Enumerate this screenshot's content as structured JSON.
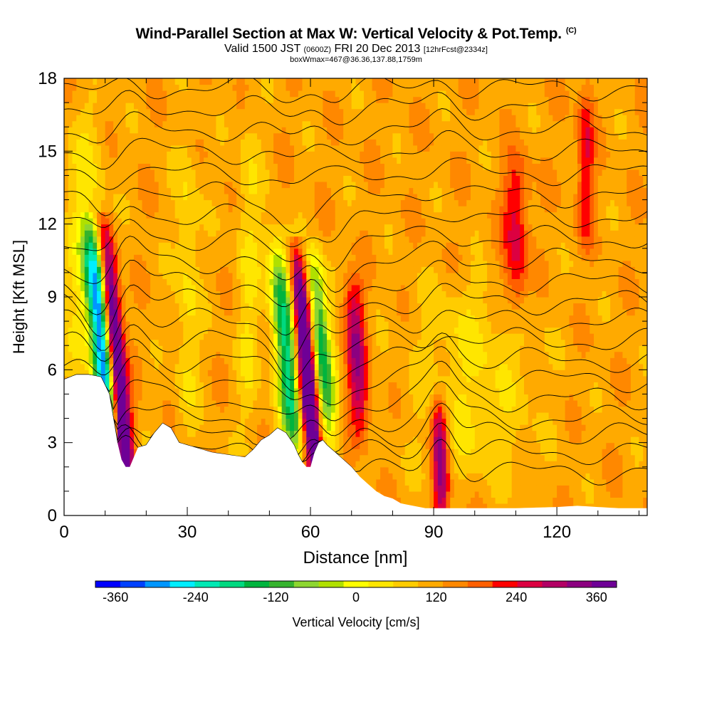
{
  "titles": {
    "main": "Wind-Parallel Section at Max W: Vertical Velocity & Pot.Temp.",
    "main_units": "(C)",
    "valid_prefix": "Valid 1500 JST",
    "valid_zulu": "(0600Z)",
    "valid_date": "FRI 20 Dec 2013",
    "valid_fcst": "[12hrFcst@2334z]",
    "box_info": "boxWmax=467@36.36,137.88,1759m"
  },
  "chart_data": {
    "type": "heatmap",
    "title": "Wind-Parallel Section at Max W: Vertical Velocity & Pot.Temp.",
    "xlabel": "Distance [nm]",
    "ylabel": "Height [Kft MSL]",
    "xlim": [
      0,
      142
    ],
    "ylim": [
      0,
      18
    ],
    "x_ticks": [
      0,
      30,
      60,
      90,
      120
    ],
    "y_ticks": [
      0,
      3,
      6,
      9,
      12,
      15,
      18
    ],
    "colorbar": {
      "label": "Vertical Velocity [cm/s]",
      "range": [
        -390,
        390
      ],
      "step": 30,
      "tick_values": [
        -360,
        -240,
        -120,
        0,
        120,
        240,
        360
      ],
      "tick_labels": [
        "-360",
        "-240",
        "-120",
        "0",
        "120",
        "240",
        "360"
      ],
      "colors": [
        "#0000ff",
        "#0041ff",
        "#0096ff",
        "#00eeff",
        "#00e9b4",
        "#00d980",
        "#00b43e",
        "#36b32e",
        "#8dd630",
        "#b0e000",
        "#ffff00",
        "#ffe600",
        "#ffcc00",
        "#ffaa00",
        "#ff8800",
        "#ff5f00",
        "#ff0000",
        "#dc0041",
        "#b20064",
        "#8c0080",
        "#6e0096"
      ]
    },
    "terrain_top_kft": [
      [
        0,
        5.6
      ],
      [
        3,
        5.8
      ],
      [
        6,
        5.8
      ],
      [
        9,
        5.7
      ],
      [
        11,
        5.0
      ],
      [
        12,
        4.0
      ],
      [
        13,
        3.0
      ],
      [
        14,
        2.3
      ],
      [
        15,
        2.0
      ],
      [
        16,
        2.0
      ],
      [
        17,
        2.4
      ],
      [
        18,
        2.8
      ],
      [
        20,
        2.9
      ],
      [
        22,
        3.4
      ],
      [
        24,
        3.8
      ],
      [
        26,
        3.6
      ],
      [
        28,
        3.0
      ],
      [
        32,
        2.8
      ],
      [
        36,
        2.6
      ],
      [
        40,
        2.5
      ],
      [
        44,
        2.4
      ],
      [
        46,
        2.7
      ],
      [
        48,
        3.1
      ],
      [
        50,
        3.3
      ],
      [
        52,
        3.6
      ],
      [
        54,
        3.4
      ],
      [
        56,
        2.9
      ],
      [
        57,
        2.5
      ],
      [
        58,
        2.2
      ],
      [
        59,
        2.0
      ],
      [
        60,
        2.0
      ],
      [
        61,
        2.6
      ],
      [
        62,
        3.0
      ],
      [
        63,
        3.1
      ],
      [
        64,
        2.9
      ],
      [
        66,
        2.6
      ],
      [
        68,
        2.3
      ],
      [
        70,
        2.0
      ],
      [
        72,
        1.6
      ],
      [
        74,
        1.3
      ],
      [
        76,
        1.0
      ],
      [
        78,
        0.8
      ],
      [
        80,
        0.7
      ],
      [
        82,
        0.5
      ],
      [
        85,
        0.4
      ],
      [
        88,
        0.3
      ],
      [
        92,
        0.3
      ],
      [
        100,
        0.3
      ],
      [
        110,
        0.3
      ],
      [
        120,
        0.35
      ],
      [
        125,
        0.4
      ],
      [
        130,
        0.35
      ],
      [
        135,
        0.3
      ],
      [
        142,
        0.3
      ]
    ],
    "vertical_velocity_features": [
      {
        "x": 15,
        "zmin": 2.0,
        "zmax": 11.0,
        "tilt": -0.55,
        "width": 2.2,
        "peak": 330
      },
      {
        "x": 11,
        "zmin": 4.0,
        "zmax": 11.0,
        "tilt": -0.55,
        "width": 2.6,
        "peak": -360
      },
      {
        "x": 61,
        "zmin": 2.2,
        "zmax": 10.0,
        "tilt": -0.5,
        "width": 2.2,
        "peak": 330
      },
      {
        "x": 56,
        "zmin": 3.0,
        "zmax": 10.5,
        "tilt": -0.5,
        "width": 2.8,
        "peak": -240
      },
      {
        "x": 64,
        "zmin": 4.0,
        "zmax": 10.0,
        "tilt": -0.5,
        "width": 2.5,
        "peak": -220
      },
      {
        "x": 72,
        "zmin": 4.0,
        "zmax": 9.0,
        "tilt": -0.3,
        "width": 2.5,
        "peak": 150
      },
      {
        "x": 92,
        "zmin": 0.5,
        "zmax": 4.0,
        "tilt": -0.2,
        "width": 2.0,
        "peak": 180
      },
      {
        "x": 110,
        "zmin": 9.0,
        "zmax": 14.0,
        "tilt": 0,
        "width": 3.0,
        "peak": 110
      },
      {
        "x": 127,
        "zmin": 12.0,
        "zmax": 17.0,
        "tilt": 0,
        "width": 2.0,
        "peak": 100
      },
      {
        "x": 5,
        "zmin": 6.0,
        "zmax": 16.0,
        "tilt": 0,
        "width": 5.0,
        "peak": -60
      },
      {
        "x": 30,
        "zmin": 4.0,
        "zmax": 15.0,
        "tilt": 0,
        "width": 3.0,
        "peak": -55
      },
      {
        "x": 100,
        "zmin": 2.0,
        "zmax": 9.0,
        "tilt": 0,
        "width": 14.0,
        "peak": -50
      },
      {
        "x": 45,
        "zmin": 4.0,
        "zmax": 16.0,
        "tilt": 0,
        "width": 3.0,
        "peak": -50
      }
    ],
    "theta_contour_base_kft": [
      1.8,
      2.6,
      3.3,
      4.0,
      4.8,
      5.6,
      6.4,
      7.2,
      8.0,
      8.8,
      9.6,
      10.5,
      11.4,
      12.3,
      13.2,
      14.1,
      15.0,
      15.9,
      16.8,
      17.6
    ]
  },
  "colorbar_label": "Vertical Velocity [cm/s]",
  "axes": {
    "xlabel": "Distance [nm]",
    "ylabel": "Height [Kft MSL]"
  }
}
